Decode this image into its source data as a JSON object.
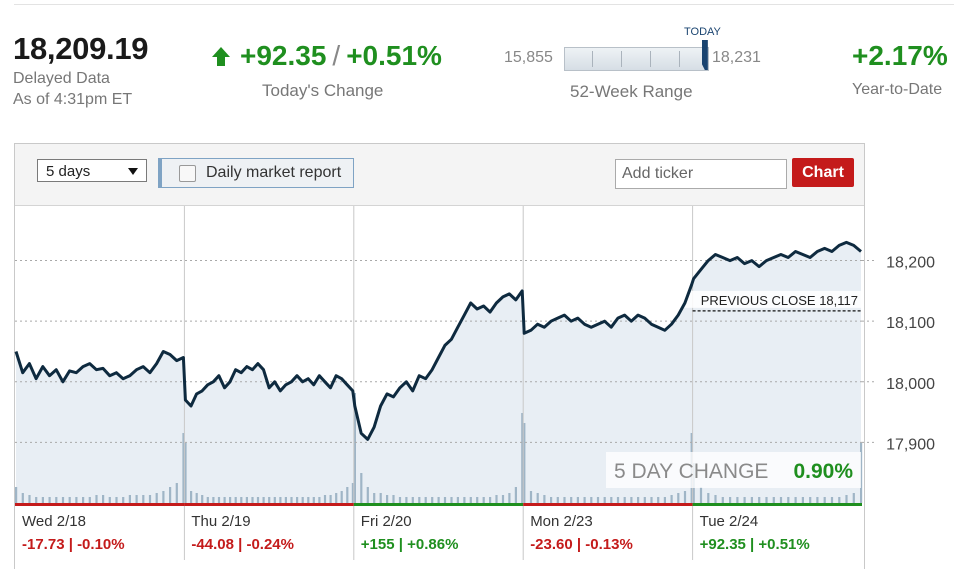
{
  "header": {
    "index_value": "18,209.19",
    "delayed": "Delayed Data",
    "as_of": "As of 4:31pm ET",
    "change_points": "+92.35",
    "change_separator": "/",
    "change_percent": "+0.51%",
    "change_label": "Today's Change",
    "range_low": "15,855",
    "range_high": "18,231",
    "range_today_label": "TODAY",
    "range_label": "52-Week Range",
    "range_position": 0.985,
    "ytd_value": "+2.17%",
    "ytd_label": "Year-to-Date"
  },
  "toolbar": {
    "period_select": "5 days",
    "daily_report_label": "Daily market report",
    "ticker_placeholder": "Add ticker",
    "chart_button": "Chart"
  },
  "chart_data": {
    "type": "line",
    "x": [
      "Wed 2/18",
      "Thu 2/19",
      "Fri 2/20",
      "Mon 2/23",
      "Tue 2/24"
    ],
    "ylim": [
      17800,
      18290
    ],
    "yticks": [
      17900,
      18000,
      18100,
      18200
    ],
    "ytick_labels": [
      "17,900",
      "18,000",
      "18,100",
      "18,200"
    ],
    "previous_close": 18117,
    "previous_close_label": "PREVIOUS CLOSE 18,117",
    "five_day_change_label": "5 DAY CHANGE",
    "five_day_change_value": "0.90%",
    "days": [
      {
        "label": "Wed 2/18",
        "change": "-17.73 | -0.10%",
        "direction": "down"
      },
      {
        "label": "Thu 2/19",
        "change": "-44.08 | -0.24%",
        "direction": "down"
      },
      {
        "label": "Fri 2/20",
        "change": "+155 | +0.86%",
        "direction": "up"
      },
      {
        "label": "Mon 2/23",
        "change": "-23.60 | -0.13%",
        "direction": "down"
      },
      {
        "label": "Tue 2/24",
        "change": "+92.35 | +0.51%",
        "direction": "up"
      }
    ],
    "series": [
      {
        "values": [
          [
            18050,
            18015,
            18030,
            18005,
            18025,
            18010,
            18020,
            18000,
            18018,
            18015,
            18025,
            18030,
            18020,
            18022,
            18010,
            18015,
            18005,
            18010,
            18020,
            18025,
            18015,
            18030,
            18050,
            18045,
            18035,
            18040
          ],
          [
            17970,
            17960,
            17980,
            17985,
            17995,
            18000,
            18010,
            17990,
            18000,
            18020,
            18015,
            18025,
            18020,
            18030,
            18020,
            17990,
            18000,
            17985,
            17995,
            18000,
            18010,
            18000,
            18005,
            17995,
            18010,
            18000,
            17990,
            18010,
            18005,
            17995,
            17985
          ],
          [
            17960,
            17915,
            17905,
            17925,
            17960,
            17980,
            17975,
            17990,
            18000,
            17985,
            18010,
            18005,
            18020,
            18040,
            18060,
            18070,
            18090,
            18110,
            18130,
            18120,
            18125,
            18115,
            18130,
            18140,
            18145,
            18135,
            18150
          ],
          [
            18080,
            18085,
            18095,
            18090,
            18100,
            18105,
            18110,
            18100,
            18105,
            18095,
            18090,
            18095,
            18100,
            18090,
            18105,
            18110,
            18100,
            18110,
            18105,
            18095,
            18090,
            18085,
            18095,
            18110,
            18130,
            18160
          ],
          [
            18170,
            18185,
            18200,
            18210,
            18205,
            18200,
            18205,
            18195,
            18200,
            18190,
            18200,
            18205,
            18210,
            18205,
            18215,
            18210,
            18205,
            18215,
            18220,
            18215,
            18225,
            18230,
            18225,
            18215
          ]
        ]
      }
    ],
    "volume": [
      [
        0.08,
        0.05,
        0.04,
        0.03,
        0.03,
        0.03,
        0.03,
        0.03,
        0.03,
        0.03,
        0.03,
        0.03,
        0.04,
        0.04,
        0.03,
        0.03,
        0.03,
        0.04,
        0.04,
        0.04,
        0.04,
        0.05,
        0.06,
        0.08,
        0.1,
        0.35
      ],
      [
        0.3,
        0.06,
        0.05,
        0.04,
        0.03,
        0.03,
        0.03,
        0.03,
        0.03,
        0.03,
        0.03,
        0.03,
        0.03,
        0.03,
        0.03,
        0.03,
        0.03,
        0.03,
        0.03,
        0.03,
        0.03,
        0.03,
        0.03,
        0.03,
        0.03,
        0.04,
        0.04,
        0.05,
        0.06,
        0.08,
        0.1
      ],
      [
        0.55,
        0.15,
        0.08,
        0.05,
        0.05,
        0.04,
        0.04,
        0.03,
        0.03,
        0.03,
        0.03,
        0.03,
        0.03,
        0.03,
        0.03,
        0.03,
        0.03,
        0.03,
        0.03,
        0.03,
        0.03,
        0.03,
        0.04,
        0.04,
        0.05,
        0.08,
        0.45
      ],
      [
        0.4,
        0.06,
        0.05,
        0.04,
        0.03,
        0.03,
        0.03,
        0.03,
        0.03,
        0.03,
        0.03,
        0.03,
        0.03,
        0.03,
        0.03,
        0.03,
        0.03,
        0.03,
        0.03,
        0.03,
        0.03,
        0.03,
        0.04,
        0.05,
        0.06,
        0.35
      ],
      [
        0.2,
        0.08,
        0.05,
        0.04,
        0.03,
        0.03,
        0.03,
        0.03,
        0.03,
        0.03,
        0.03,
        0.03,
        0.03,
        0.03,
        0.03,
        0.03,
        0.03,
        0.03,
        0.03,
        0.03,
        0.03,
        0.04,
        0.05,
        0.3
      ]
    ],
    "colors": {
      "line": "#0e2a3f",
      "fill": "#e8eef4",
      "up": "#1f8f1f",
      "down": "#c41b1b",
      "volume": "#9fb5c6",
      "grid": "#a9a9a9"
    }
  }
}
